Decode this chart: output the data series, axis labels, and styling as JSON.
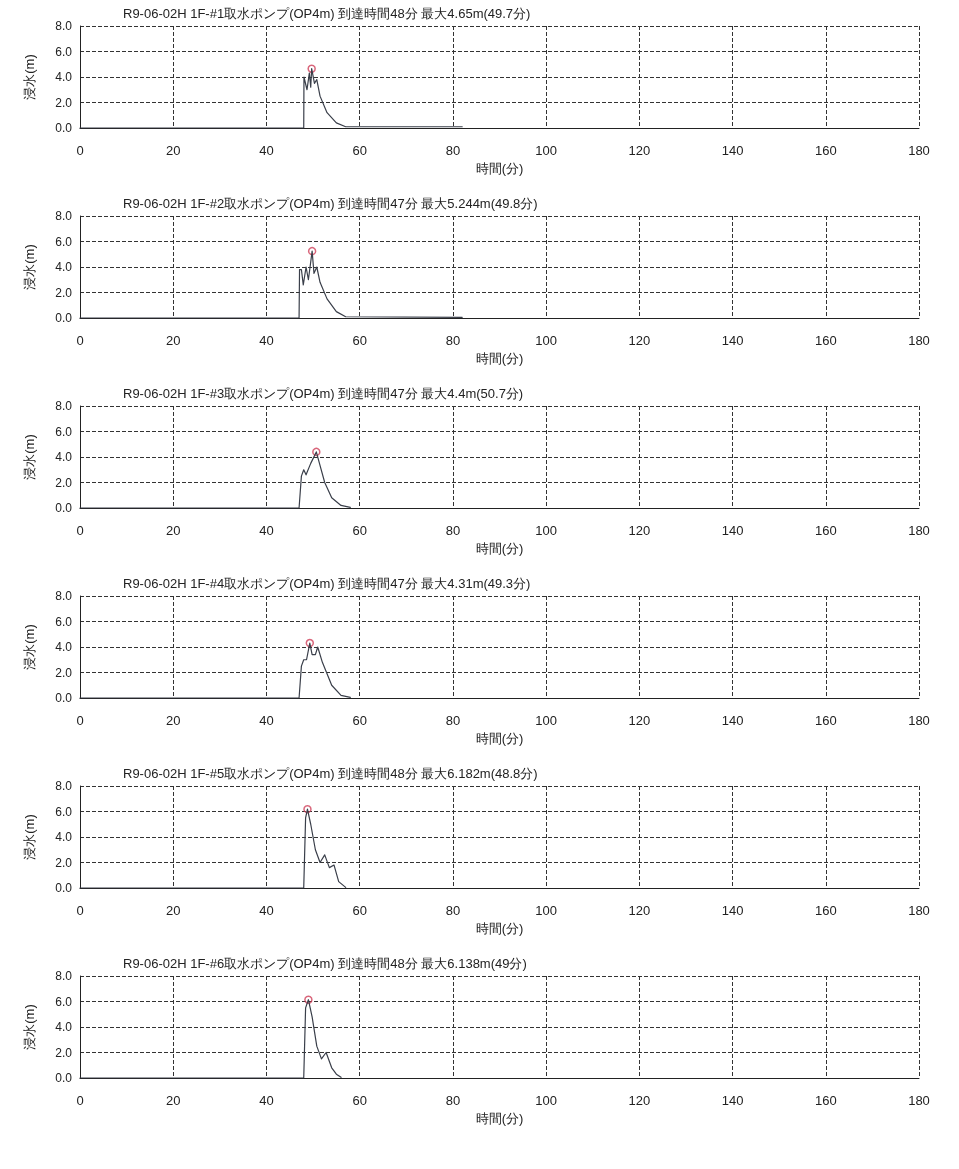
{
  "chart_data": [
    {
      "type": "line",
      "title": "R9-06-02H 1F-#1取水ポンプ(OP4m) 到達時間48分 最大4.65m(49.7分)",
      "xlabel": "時間(分)",
      "ylabel": "浸水(m)",
      "xlim": [
        0,
        180
      ],
      "xticks": [
        0,
        20,
        40,
        60,
        80,
        100,
        120,
        140,
        160,
        180
      ],
      "ylim": [
        0,
        8
      ],
      "yticks": [
        {
          "value": 0,
          "label": "0.0"
        },
        {
          "value": 2,
          "label": "2.0"
        },
        {
          "value": 4,
          "label": "4.0"
        },
        {
          "value": 6,
          "label": "6.0"
        },
        {
          "value": 8,
          "label": "8.0"
        }
      ],
      "grid": true,
      "marker": "none",
      "line_style": "solid",
      "series": [
        {
          "color": "#3a3f4a",
          "x": [
            0,
            48,
            48.05,
            48.7,
            49.2,
            49.5,
            49.7,
            50.3,
            50.8,
            51.5,
            53,
            55,
            57,
            82
          ],
          "values": [
            0,
            0,
            4.0,
            3.0,
            4.3,
            3.2,
            4.65,
            3.5,
            3.8,
            2.5,
            1.2,
            0.4,
            0.1,
            0.1
          ]
        },
        {
          "type": "scatter",
          "marker": "circle",
          "color": "#d0405a",
          "x": [
            49.7
          ],
          "values": [
            4.65
          ]
        }
      ]
    },
    {
      "type": "line",
      "title": "R9-06-02H 1F-#2取水ポンプ(OP4m) 到達時間47分 最大5.244m(49.8分)",
      "xlabel": "時間(分)",
      "ylabel": "浸水(m)",
      "xlim": [
        0,
        180
      ],
      "xticks": [
        0,
        20,
        40,
        60,
        80,
        100,
        120,
        140,
        160,
        180
      ],
      "ylim": [
        0,
        8
      ],
      "yticks": [
        {
          "value": 0,
          "label": "0.0"
        },
        {
          "value": 2,
          "label": "2.0"
        },
        {
          "value": 4,
          "label": "4.0"
        },
        {
          "value": 6,
          "label": "6.0"
        },
        {
          "value": 8,
          "label": "8.0"
        }
      ],
      "grid": true,
      "marker": "none",
      "line_style": "solid",
      "series": [
        {
          "color": "#3a3f4a",
          "x": [
            0,
            47,
            47.1,
            47.5,
            47.9,
            48.5,
            49,
            49.8,
            50.2,
            50.8,
            51.5,
            53,
            55,
            57,
            82
          ],
          "values": [
            0,
            0,
            3.8,
            3.8,
            2.6,
            4.0,
            3.0,
            5.244,
            3.5,
            4.0,
            2.8,
            1.5,
            0.5,
            0.1,
            0.05
          ]
        },
        {
          "type": "scatter",
          "marker": "circle",
          "color": "#d0405a",
          "x": [
            49.8
          ],
          "values": [
            5.244
          ]
        }
      ]
    },
    {
      "type": "line",
      "title": "R9-06-02H 1F-#3取水ポンプ(OP4m) 到達時間47分 最大4.4m(50.7分)",
      "xlabel": "時間(分)",
      "ylabel": "浸水(m)",
      "xlim": [
        0,
        180
      ],
      "xticks": [
        0,
        20,
        40,
        60,
        80,
        100,
        120,
        140,
        160,
        180
      ],
      "ylim": [
        0,
        8
      ],
      "yticks": [
        {
          "value": 0,
          "label": "0.0"
        },
        {
          "value": 2,
          "label": "2.0"
        },
        {
          "value": 4,
          "label": "4.0"
        },
        {
          "value": 6,
          "label": "6.0"
        },
        {
          "value": 8,
          "label": "8.0"
        }
      ],
      "grid": true,
      "marker": "none",
      "line_style": "solid",
      "series": [
        {
          "color": "#3a3f4a",
          "x": [
            0,
            47,
            47.5,
            48,
            48.5,
            49.5,
            50.7,
            51.3,
            52.5,
            54,
            56,
            58
          ],
          "values": [
            0,
            0,
            2.5,
            3.0,
            2.6,
            3.5,
            4.4,
            3.6,
            2.0,
            0.8,
            0.2,
            0.05
          ]
        },
        {
          "type": "scatter",
          "marker": "circle",
          "color": "#d0405a",
          "x": [
            50.7
          ],
          "values": [
            4.4
          ]
        }
      ]
    },
    {
      "type": "line",
      "title": "R9-06-02H 1F-#4取水ポンプ(OP4m) 到達時間47分 最大4.31m(49.3分)",
      "xlabel": "時間(分)",
      "ylabel": "浸水(m)",
      "xlim": [
        0,
        180
      ],
      "xticks": [
        0,
        20,
        40,
        60,
        80,
        100,
        120,
        140,
        160,
        180
      ],
      "ylim": [
        0,
        8
      ],
      "yticks": [
        {
          "value": 0,
          "label": "0.0"
        },
        {
          "value": 2,
          "label": "2.0"
        },
        {
          "value": 4,
          "label": "4.0"
        },
        {
          "value": 6,
          "label": "6.0"
        },
        {
          "value": 8,
          "label": "8.0"
        }
      ],
      "grid": true,
      "marker": "none",
      "line_style": "solid",
      "series": [
        {
          "color": "#3a3f4a",
          "x": [
            0,
            47,
            47.5,
            48,
            48.6,
            49.3,
            49.8,
            50.5,
            51,
            52,
            54,
            56,
            58
          ],
          "values": [
            0,
            0,
            2.5,
            3.0,
            3.0,
            4.31,
            3.4,
            3.4,
            4.0,
            2.8,
            1.0,
            0.2,
            0.05
          ]
        },
        {
          "type": "scatter",
          "marker": "circle",
          "color": "#d0405a",
          "x": [
            49.3
          ],
          "values": [
            4.31
          ]
        }
      ]
    },
    {
      "type": "line",
      "title": "R9-06-02H 1F-#5取水ポンプ(OP4m) 到達時間48分 最大6.182m(48.8分)",
      "xlabel": "時間(分)",
      "ylabel": "浸水(m)",
      "xlim": [
        0,
        180
      ],
      "xticks": [
        0,
        20,
        40,
        60,
        80,
        100,
        120,
        140,
        160,
        180
      ],
      "ylim": [
        0,
        8
      ],
      "yticks": [
        {
          "value": 0,
          "label": "0.0"
        },
        {
          "value": 2,
          "label": "2.0"
        },
        {
          "value": 4,
          "label": "4.0"
        },
        {
          "value": 6,
          "label": "6.0"
        },
        {
          "value": 8,
          "label": "8.0"
        }
      ],
      "grid": true,
      "marker": "none",
      "line_style": "solid",
      "series": [
        {
          "color": "#3a3f4a",
          "x": [
            0,
            48,
            48.4,
            48.8,
            49.5,
            50.5,
            51.5,
            52.5,
            53.5,
            54.5,
            55.5,
            57
          ],
          "values": [
            0,
            0,
            5.5,
            6.182,
            5.0,
            3.0,
            2.0,
            2.6,
            1.6,
            1.8,
            0.5,
            0.05
          ]
        },
        {
          "type": "scatter",
          "marker": "circle",
          "color": "#d0405a",
          "x": [
            48.8
          ],
          "values": [
            6.182
          ]
        }
      ]
    },
    {
      "type": "line",
      "title": "R9-06-02H 1F-#6取水ポンプ(OP4m) 到達時間48分 最大6.138m(49分)",
      "xlabel": "時間(分)",
      "ylabel": "浸水(m)",
      "xlim": [
        0,
        180
      ],
      "xticks": [
        0,
        20,
        40,
        60,
        80,
        100,
        120,
        140,
        160,
        180
      ],
      "ylim": [
        0,
        8
      ],
      "yticks": [
        {
          "value": 0,
          "label": "0.0"
        },
        {
          "value": 2,
          "label": "2.0"
        },
        {
          "value": 4,
          "label": "4.0"
        },
        {
          "value": 6,
          "label": "6.0"
        },
        {
          "value": 8,
          "label": "8.0"
        }
      ],
      "grid": true,
      "marker": "none",
      "line_style": "solid",
      "series": [
        {
          "color": "#3a3f4a",
          "x": [
            0,
            48,
            48.4,
            49,
            49.8,
            50.8,
            51.8,
            52.8,
            54,
            55,
            56
          ],
          "values": [
            0,
            0,
            5.5,
            6.138,
            4.8,
            2.5,
            1.5,
            2.0,
            0.8,
            0.3,
            0.05
          ]
        },
        {
          "type": "scatter",
          "marker": "circle",
          "color": "#d0405a",
          "x": [
            49
          ],
          "values": [
            6.138
          ]
        }
      ]
    }
  ]
}
